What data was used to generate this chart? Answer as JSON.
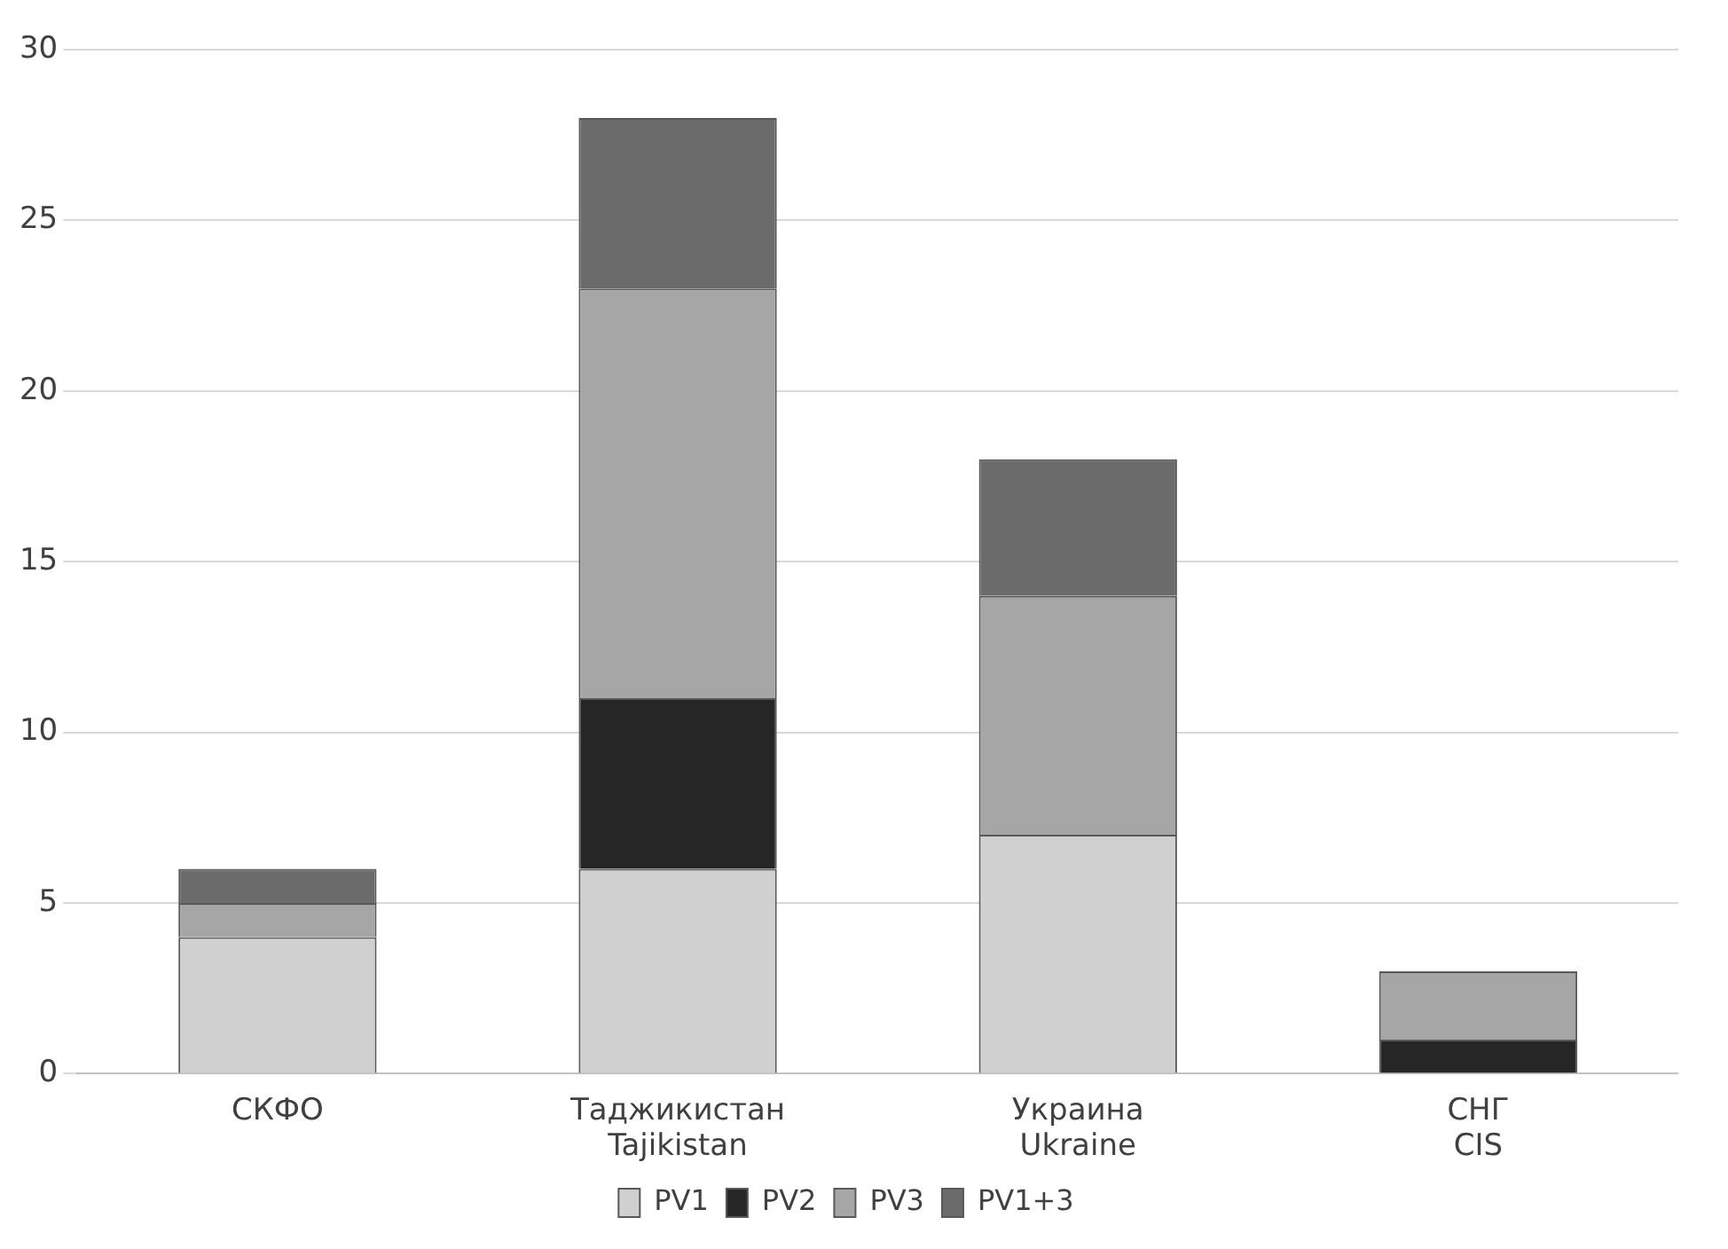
{
  "chart_data": {
    "type": "bar",
    "stacked": true,
    "categories": [
      "СКФО",
      "Таджикистан\nTajikistan",
      "Украина\nUkraine",
      "СНГ\nCIS"
    ],
    "series": [
      {
        "name": "PV1",
        "color": "#d0d0d0",
        "values": [
          4,
          6,
          7,
          0
        ]
      },
      {
        "name": "PV2",
        "color": "#262626",
        "values": [
          0,
          5,
          0,
          1
        ]
      },
      {
        "name": "PV3",
        "color": "#a6a6a6",
        "values": [
          1,
          12,
          7,
          2
        ]
      },
      {
        "name": "PV1+3",
        "color": "#6b6b6b",
        "values": [
          1,
          5,
          4,
          0
        ]
      }
    ],
    "ylim": [
      0,
      30
    ],
    "yticks": [
      0,
      5,
      10,
      15,
      20,
      25,
      30
    ],
    "grid": "y",
    "legend": "bottom"
  }
}
